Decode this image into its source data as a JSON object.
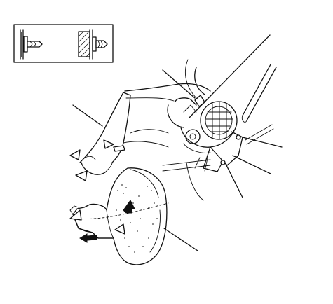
{
  "diagram": {
    "inset": {
      "items": [
        {
          "icon": "clip-fastener-icon"
        },
        {
          "icon": "clip-installed-icon"
        }
      ]
    },
    "callout_count": 7,
    "arrow_marks": [
      {
        "icon": "open-triangle-pointer-icon"
      },
      {
        "icon": "filled-arrow-up-icon"
      },
      {
        "icon": "filled-arrow-left-icon"
      }
    ]
  }
}
